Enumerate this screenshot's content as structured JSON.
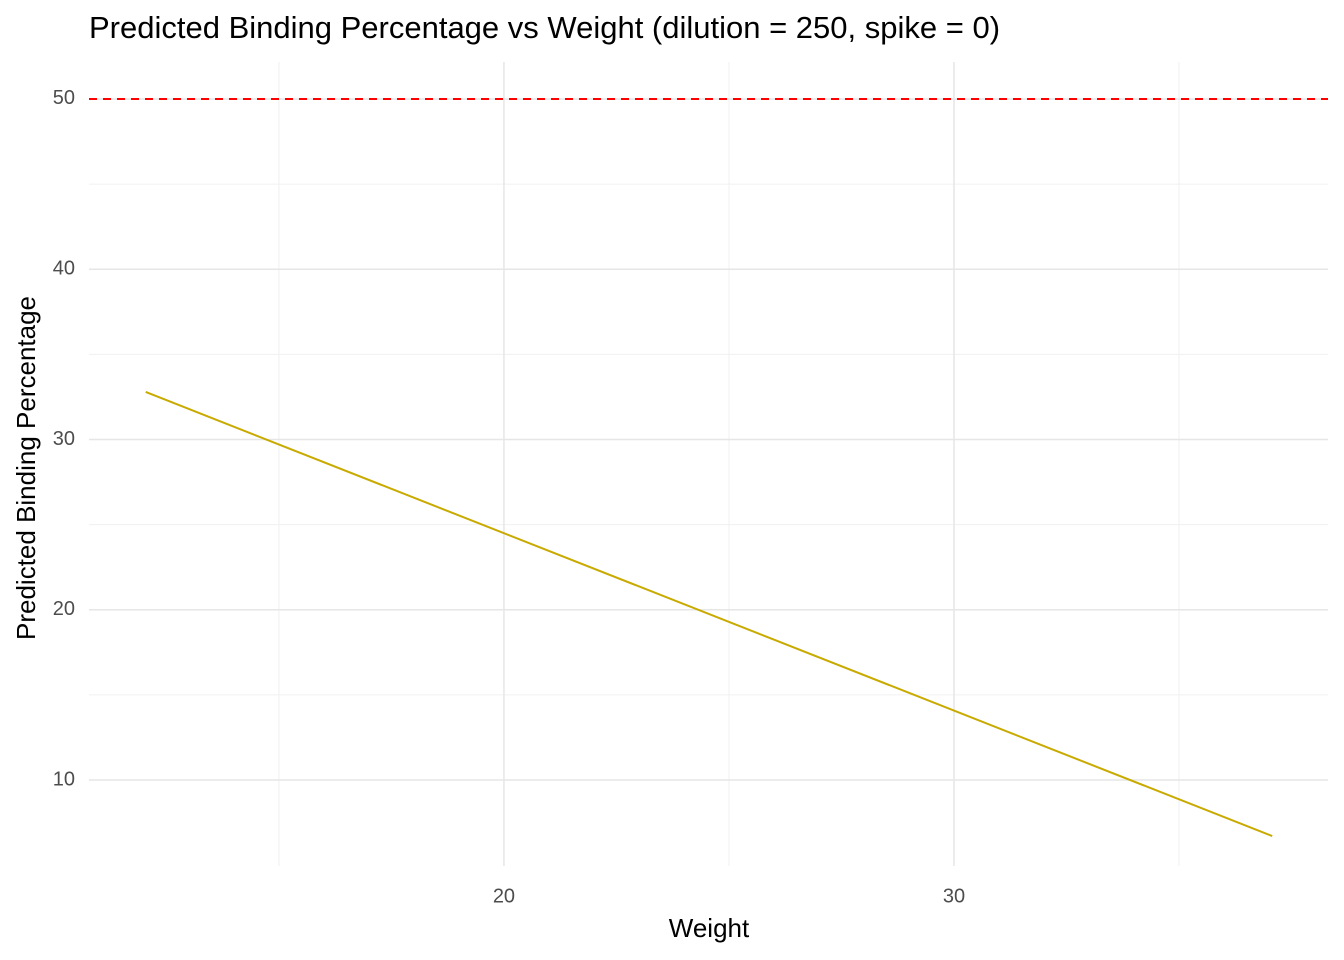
{
  "chart_data": {
    "type": "line",
    "title": "Predicted Binding Percentage vs Weight (dilution = 250, spike = 0)",
    "x_label": "Weight",
    "y_label": "Predicted Binding Percentage",
    "series": [
      {
        "x": [
          12.04,
          37.07
        ],
        "values": [
          32.79,
          6.71
        ],
        "color": "#c8aa00"
      }
    ],
    "xlim": [
      10.78,
      38.31
    ],
    "ylim": [
      4.95,
      52.17
    ],
    "xticks": [
      20,
      30
    ],
    "yticks": [
      10,
      20,
      30,
      40,
      50
    ],
    "x_minor_ticks": [
      15,
      25,
      35
    ],
    "y_minor_ticks": [
      15,
      25,
      35,
      45
    ],
    "grid": true,
    "hline": {
      "value": 50,
      "color": "#ff0000",
      "dashed": true
    }
  }
}
